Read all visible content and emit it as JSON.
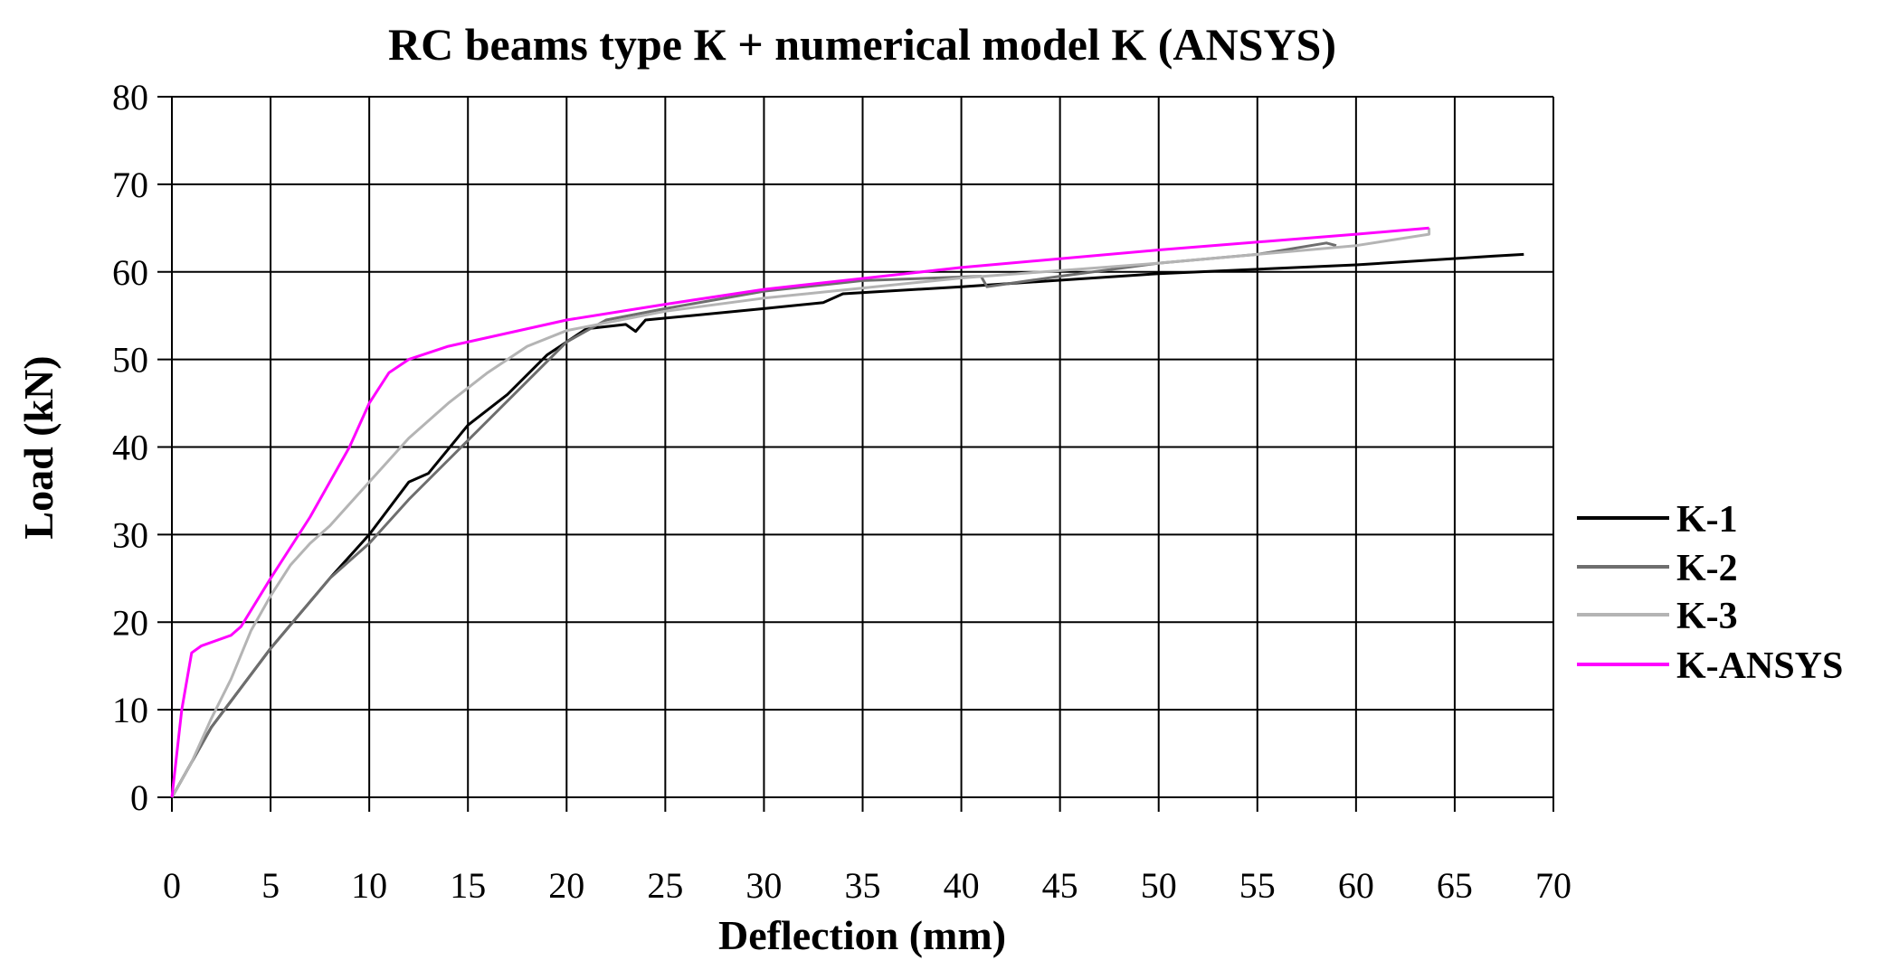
{
  "chart_data": {
    "type": "line",
    "title": "RC beams type К + numerical model K (ANSYS)",
    "xlabel": "Deflection (mm)",
    "ylabel": "Load (kN)",
    "xlim": [
      0,
      70
    ],
    "ylim": [
      0,
      80
    ],
    "xticks": [
      0,
      5,
      10,
      15,
      20,
      25,
      30,
      35,
      40,
      45,
      50,
      55,
      60,
      65,
      70
    ],
    "yticks": [
      0,
      10,
      20,
      30,
      40,
      50,
      60,
      70,
      80
    ],
    "grid": true,
    "legend_position": "right",
    "series": [
      {
        "name": "K-1",
        "color": "#000000",
        "points": [
          [
            0,
            0
          ],
          [
            2,
            8
          ],
          [
            5,
            17
          ],
          [
            8,
            25
          ],
          [
            10,
            30
          ],
          [
            12,
            36
          ],
          [
            13,
            37
          ],
          [
            15,
            42.5
          ],
          [
            17,
            46
          ],
          [
            19,
            50.5
          ],
          [
            20,
            52
          ],
          [
            21,
            53.5
          ],
          [
            23,
            54
          ],
          [
            23.5,
            53.2
          ],
          [
            24,
            54.5
          ],
          [
            30,
            55.8
          ],
          [
            33,
            56.5
          ],
          [
            34,
            57.5
          ],
          [
            40,
            58.3
          ],
          [
            50,
            59.8
          ],
          [
            60,
            60.8
          ],
          [
            67,
            61.8
          ],
          [
            68.5,
            62
          ]
        ]
      },
      {
        "name": "K-2",
        "color": "#6e6e6e",
        "points": [
          [
            0,
            0
          ],
          [
            2,
            8
          ],
          [
            5,
            17
          ],
          [
            8,
            25
          ],
          [
            10,
            29
          ],
          [
            12,
            34
          ],
          [
            14,
            38.5
          ],
          [
            16,
            43
          ],
          [
            18,
            47.5
          ],
          [
            20,
            52
          ],
          [
            22,
            54.5
          ],
          [
            25,
            55.8
          ],
          [
            30,
            57.8
          ],
          [
            35,
            59
          ],
          [
            41,
            59.5
          ],
          [
            41.3,
            58.3
          ],
          [
            45,
            59.5
          ],
          [
            50,
            61
          ],
          [
            55,
            62
          ],
          [
            58.5,
            63.3
          ],
          [
            59,
            63
          ]
        ]
      },
      {
        "name": "K-3",
        "color": "#b4b4b4",
        "points": [
          [
            0,
            0
          ],
          [
            1,
            4
          ],
          [
            2,
            9
          ],
          [
            3,
            13.5
          ],
          [
            4,
            19
          ],
          [
            5,
            23
          ],
          [
            6,
            26.5
          ],
          [
            7,
            29
          ],
          [
            8,
            31
          ],
          [
            10,
            36
          ],
          [
            12,
            41
          ],
          [
            14,
            45
          ],
          [
            16,
            48.5
          ],
          [
            18,
            51.5
          ],
          [
            20,
            53.3
          ],
          [
            25,
            55.5
          ],
          [
            30,
            57
          ],
          [
            40,
            59.3
          ],
          [
            50,
            61
          ],
          [
            60,
            63
          ],
          [
            63.7,
            64.3
          ],
          [
            63.7,
            65
          ]
        ]
      },
      {
        "name": "K-ANSYS",
        "color": "#ff00ff",
        "points": [
          [
            0,
            0
          ],
          [
            0.5,
            10
          ],
          [
            1,
            16.5
          ],
          [
            1.5,
            17.3
          ],
          [
            3,
            18.5
          ],
          [
            3.5,
            19.5
          ],
          [
            5,
            25
          ],
          [
            7,
            32
          ],
          [
            9,
            40
          ],
          [
            10,
            45
          ],
          [
            11,
            48.5
          ],
          [
            12,
            50
          ],
          [
            14,
            51.5
          ],
          [
            20,
            54.5
          ],
          [
            25,
            56.3
          ],
          [
            30,
            58
          ],
          [
            40,
            60.5
          ],
          [
            50,
            62.5
          ],
          [
            60,
            64.3
          ],
          [
            63.7,
            65
          ]
        ]
      }
    ]
  }
}
